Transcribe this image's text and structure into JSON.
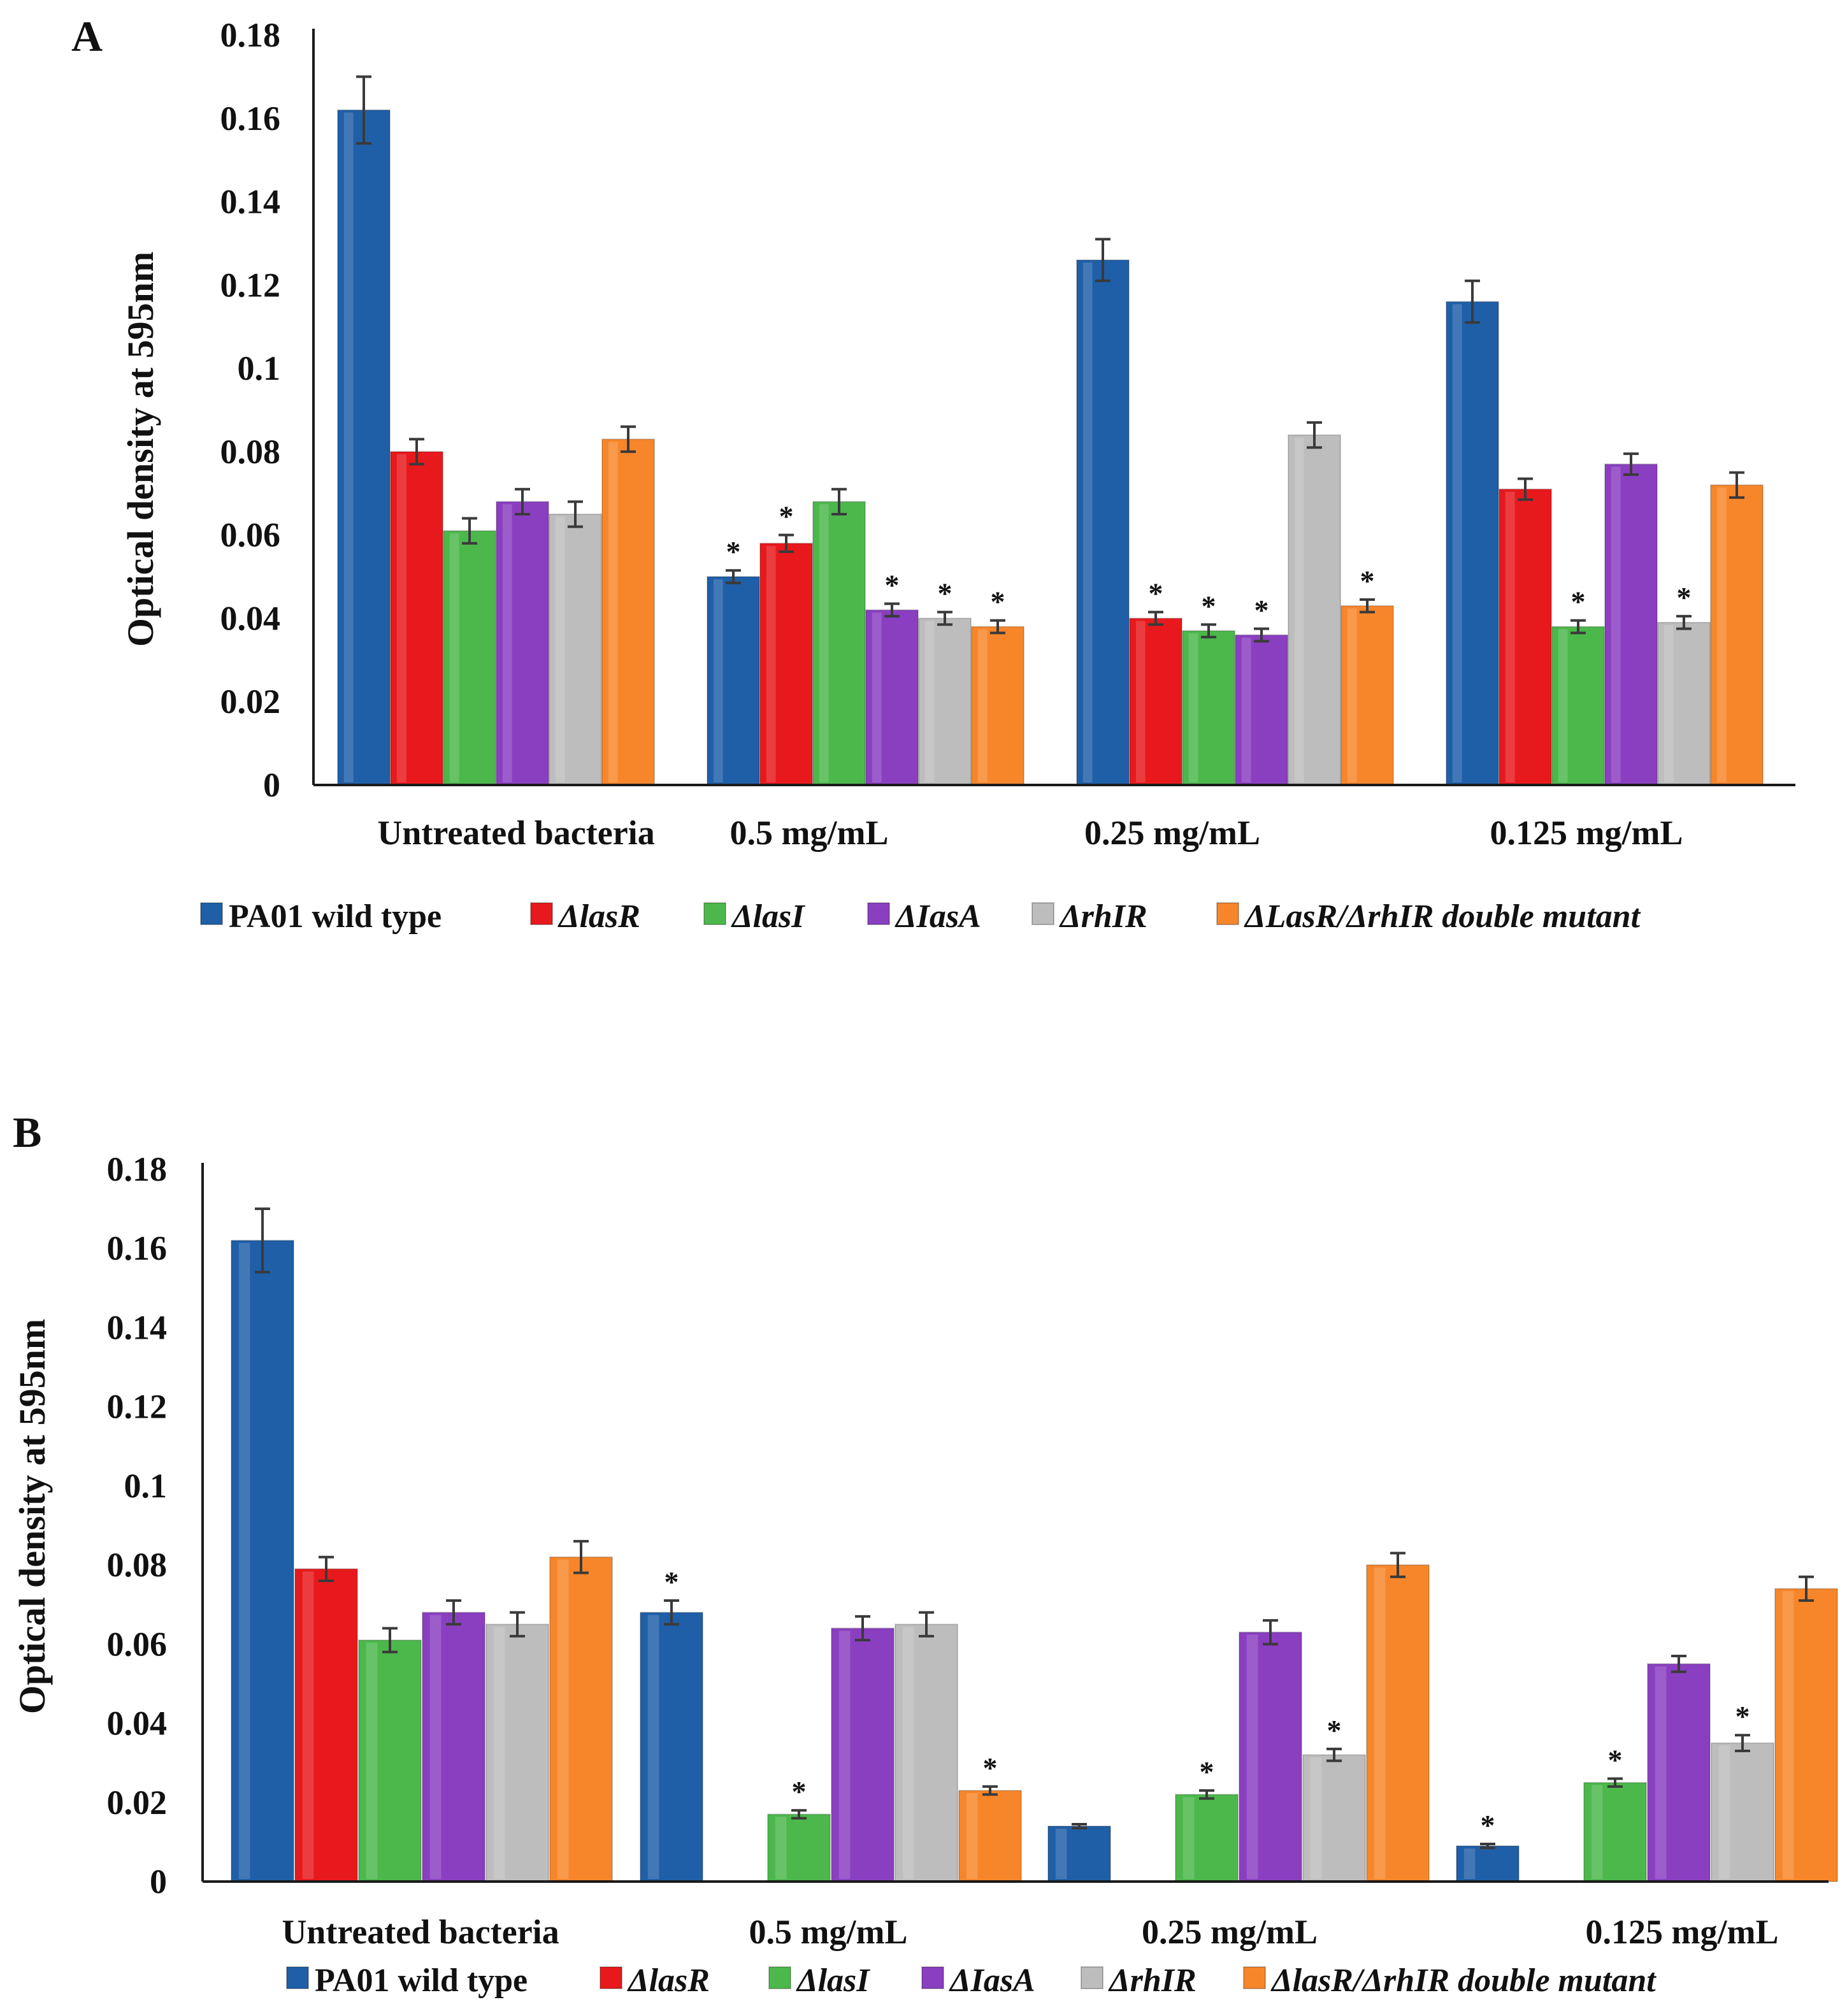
{
  "colors": {
    "wt": "#1f5fa8",
    "lasR": "#e8191c",
    "lasI": "#4cb84c",
    "lasA": "#8a3fc1",
    "rhlR": "#bdbdbd",
    "double": "#f7862a",
    "axis": "#1a1a1a",
    "error": "#3a3a3a"
  },
  "chart_data": [
    {
      "panel": "A",
      "type": "bar",
      "title": "",
      "xlabel": "",
      "ylabel": "Optical density at 595nm",
      "ylim": [
        0,
        0.18
      ],
      "yticks": [
        "0",
        "0.02",
        "0.04",
        "0.06",
        "0.08",
        "0.1",
        "0.12",
        "0.14",
        "0.16",
        "0.18"
      ],
      "categories": [
        "Untreated bacteria",
        "0.5 mg/mL",
        "0.25 mg/mL",
        "0.125 mg/mL"
      ],
      "series": [
        {
          "name": "PA01 wild type",
          "key": "wt",
          "values": [
            0.162,
            0.05,
            0.126,
            0.116
          ],
          "errors": [
            0.008,
            0.0015,
            0.005,
            0.005
          ],
          "sig": [
            false,
            true,
            false,
            false
          ]
        },
        {
          "name": "ΔlasR",
          "key": "lasR",
          "values": [
            0.08,
            0.058,
            0.04,
            0.071
          ],
          "errors": [
            0.003,
            0.002,
            0.0015,
            0.0025
          ],
          "sig": [
            false,
            true,
            true,
            false
          ]
        },
        {
          "name": "ΔlasI",
          "key": "lasI",
          "values": [
            0.061,
            0.068,
            0.037,
            0.038
          ],
          "errors": [
            0.003,
            0.003,
            0.0015,
            0.0015
          ],
          "sig": [
            false,
            false,
            true,
            true
          ]
        },
        {
          "name": "ΔIasA",
          "key": "lasA",
          "values": [
            0.068,
            0.042,
            0.036,
            0.077
          ],
          "errors": [
            0.003,
            0.0015,
            0.0015,
            0.0025
          ],
          "sig": [
            false,
            true,
            true,
            false
          ]
        },
        {
          "name": "ΔrhIR",
          "key": "rhlR",
          "values": [
            0.065,
            0.04,
            0.084,
            0.039
          ],
          "errors": [
            0.003,
            0.0015,
            0.003,
            0.0015
          ],
          "sig": [
            false,
            true,
            false,
            true
          ]
        },
        {
          "name": "ΔLasR/ΔrhIR double mutant",
          "key": "double",
          "values": [
            0.083,
            0.038,
            0.043,
            0.072
          ],
          "errors": [
            0.003,
            0.0015,
            0.0015,
            0.003
          ],
          "sig": [
            false,
            true,
            true,
            false
          ]
        }
      ],
      "significance_marker": "*",
      "legend_position": "bottom"
    },
    {
      "panel": "B",
      "type": "bar",
      "title": "",
      "xlabel": "",
      "ylabel": "Optical density at 595nm",
      "ylim": [
        0,
        0.18
      ],
      "yticks": [
        "0",
        "0.02",
        "0.04",
        "0.06",
        "0.08",
        "0.1",
        "0.12",
        "0.14",
        "0.16",
        "0.18"
      ],
      "categories": [
        "Untreated bacteria",
        "0.5 mg/mL",
        "0.25 mg/mL",
        "0.125 mg/mL"
      ],
      "series": [
        {
          "name": "PA01 wild type",
          "key": "wt",
          "values": [
            0.162,
            0.068,
            0.014,
            0.009
          ],
          "errors": [
            0.008,
            0.003,
            0.0005,
            0.0005
          ],
          "sig": [
            false,
            true,
            false,
            true
          ]
        },
        {
          "name": "ΔlasR",
          "key": "lasR",
          "values": [
            0.079,
            0,
            0,
            0
          ],
          "errors": [
            0.003,
            0,
            0,
            0
          ],
          "sig": [
            false,
            false,
            false,
            false
          ]
        },
        {
          "name": "ΔlasI",
          "key": "lasI",
          "values": [
            0.061,
            0.017,
            0.022,
            0.025
          ],
          "errors": [
            0.003,
            0.001,
            0.001,
            0.001
          ],
          "sig": [
            false,
            true,
            true,
            true
          ]
        },
        {
          "name": "ΔIasA",
          "key": "lasA",
          "values": [
            0.068,
            0.064,
            0.063,
            0.055
          ],
          "errors": [
            0.003,
            0.003,
            0.003,
            0.002
          ],
          "sig": [
            false,
            false,
            false,
            false
          ]
        },
        {
          "name": "ΔrhIR",
          "key": "rhlR",
          "values": [
            0.065,
            0.065,
            0.032,
            0.035
          ],
          "errors": [
            0.003,
            0.003,
            0.0015,
            0.002
          ],
          "sig": [
            false,
            false,
            true,
            true
          ]
        },
        {
          "name": "ΔlasR/ΔrhIR double mutant",
          "key": "double",
          "values": [
            0.082,
            0.023,
            0.08,
            0.074
          ],
          "errors": [
            0.004,
            0.001,
            0.003,
            0.003
          ],
          "sig": [
            false,
            true,
            false,
            false
          ]
        }
      ],
      "significance_marker": "*",
      "legend_position": "bottom"
    }
  ]
}
